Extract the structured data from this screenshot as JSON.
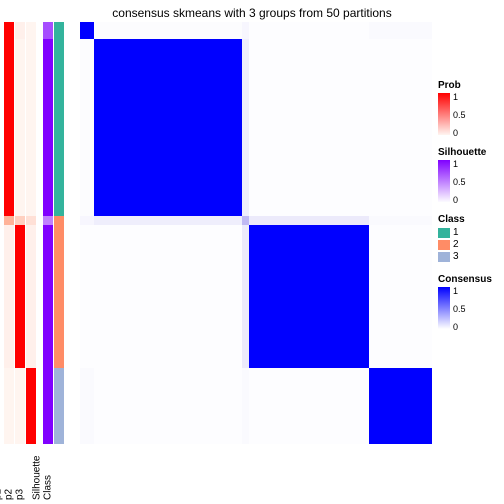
{
  "title": "consensus skmeans with 3 groups from 50 partitions",
  "background_color": "#ffffff",
  "heatmap": {
    "type": "heatmap",
    "n": 100,
    "block_fractions_rows": [
      0.04,
      0.42,
      0.02,
      0.34,
      0.18
    ],
    "block_fractions_cols": [
      0.04,
      0.42,
      0.02,
      0.34,
      0.18
    ],
    "values": [
      [
        1.0,
        0.02,
        0.05,
        0.01,
        0.03
      ],
      [
        0.02,
        1.0,
        0.1,
        0.01,
        0.01
      ],
      [
        0.05,
        0.1,
        0.4,
        0.12,
        0.03
      ],
      [
        0.01,
        0.01,
        0.12,
        1.0,
        0.01
      ],
      [
        0.03,
        0.01,
        0.03,
        0.01,
        1.0
      ]
    ],
    "colormap_low": "#ffffff",
    "colormap_mid": "#b0a8f0",
    "colormap_high": "#0000ff"
  },
  "annotations": [
    {
      "name": "p1",
      "segments": [
        {
          "f": 0.04,
          "c": "#ff0000"
        },
        {
          "f": 0.42,
          "c": "#ff0000"
        },
        {
          "f": 0.02,
          "c": "#ffb399"
        },
        {
          "f": 0.34,
          "c": "#fff0eb"
        },
        {
          "f": 0.18,
          "c": "#fff5f0"
        }
      ]
    },
    {
      "name": "p2",
      "segments": [
        {
          "f": 0.04,
          "c": "#fff0eb"
        },
        {
          "f": 0.42,
          "c": "#fff5f0"
        },
        {
          "f": 0.02,
          "c": "#ffd0c0"
        },
        {
          "f": 0.34,
          "c": "#ff0000"
        },
        {
          "f": 0.18,
          "c": "#fff5f0"
        }
      ]
    },
    {
      "name": "p3",
      "segments": [
        {
          "f": 0.04,
          "c": "#fff5f0"
        },
        {
          "f": 0.42,
          "c": "#fff5f0"
        },
        {
          "f": 0.02,
          "c": "#ffe0d6"
        },
        {
          "f": 0.34,
          "c": "#fff0eb"
        },
        {
          "f": 0.18,
          "c": "#ff0000"
        }
      ]
    },
    {
      "gap": true
    },
    {
      "name": "Silhouette",
      "segments": [
        {
          "f": 0.04,
          "c": "#a64dff"
        },
        {
          "f": 0.42,
          "c": "#8000ff"
        },
        {
          "f": 0.02,
          "c": "#c080ff"
        },
        {
          "f": 0.34,
          "c": "#8000ff"
        },
        {
          "f": 0.18,
          "c": "#8000ff"
        }
      ]
    },
    {
      "name": "Class",
      "segments": [
        {
          "f": 0.04,
          "c": "#33b39c"
        },
        {
          "f": 0.42,
          "c": "#33b39c"
        },
        {
          "f": 0.02,
          "c": "#ff8c66"
        },
        {
          "f": 0.34,
          "c": "#ff8c66"
        },
        {
          "f": 0.18,
          "c": "#9fb3d9"
        }
      ]
    }
  ],
  "legends": {
    "prob": {
      "title": "Prob",
      "gradient_top": "#ff0000",
      "gradient_bottom": "#fff5f0",
      "ticks": [
        {
          "pos": 0.0,
          "label": "1"
        },
        {
          "pos": 0.5,
          "label": "0.5"
        },
        {
          "pos": 1.0,
          "label": "0"
        }
      ]
    },
    "silhouette": {
      "title": "Silhouette",
      "gradient_top": "#8000ff",
      "gradient_bottom": "#fcfbff",
      "ticks": [
        {
          "pos": 0.0,
          "label": "1"
        },
        {
          "pos": 0.5,
          "label": "0.5"
        },
        {
          "pos": 1.0,
          "label": "0"
        }
      ]
    },
    "class": {
      "title": "Class",
      "items": [
        {
          "label": "1",
          "color": "#33b39c"
        },
        {
          "label": "2",
          "color": "#ff8c66"
        },
        {
          "label": "3",
          "color": "#9fb3d9"
        }
      ]
    },
    "consensus": {
      "title": "Consensus",
      "gradient_top": "#0000ff",
      "gradient_bottom": "#ffffff",
      "ticks": [
        {
          "pos": 0.0,
          "label": "1"
        },
        {
          "pos": 0.5,
          "label": "0.5"
        },
        {
          "pos": 1.0,
          "label": "0"
        }
      ]
    }
  }
}
